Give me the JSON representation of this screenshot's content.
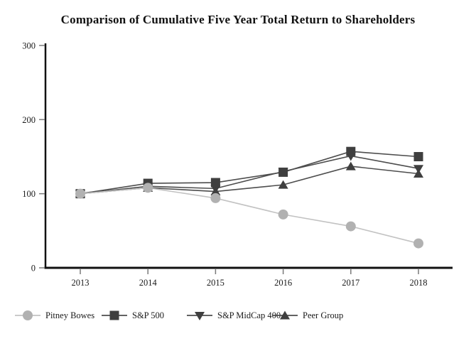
{
  "title": "Comparison of Cumulative Five Year Total Return to Shareholders",
  "chart_data": {
    "type": "line",
    "categories": [
      "2013",
      "2014",
      "2015",
      "2016",
      "2017",
      "2018"
    ],
    "series": [
      {
        "name": "Pitney Bowes",
        "marker": "circle",
        "color": "#b1b1b1",
        "line_color": "#c2c2c2",
        "values": [
          100,
          108,
          94,
          72,
          56,
          33
        ]
      },
      {
        "name": "S&P 500",
        "marker": "square",
        "color": "#3f3f3f",
        "line_color": "#4d4d4d",
        "values": [
          100,
          114,
          115,
          129,
          157,
          150
        ]
      },
      {
        "name": "S&P MidCap 400",
        "marker": "triangle-down",
        "color": "#3f3f3f",
        "line_color": "#4d4d4d",
        "values": [
          100,
          110,
          107,
          130,
          151,
          134
        ]
      },
      {
        "name": "Peer Group",
        "marker": "triangle-up",
        "color": "#3f3f3f",
        "line_color": "#4d4d4d",
        "values": [
          100,
          108,
          103,
          112,
          137,
          127
        ]
      }
    ],
    "ylim": [
      0,
      300
    ],
    "yticks": [
      0,
      100,
      200,
      300
    ],
    "xlabel": "",
    "ylabel": "",
    "grid": false,
    "legend_position": "bottom",
    "axis_color": "#111111",
    "tick_color": "#7a7a7a"
  }
}
